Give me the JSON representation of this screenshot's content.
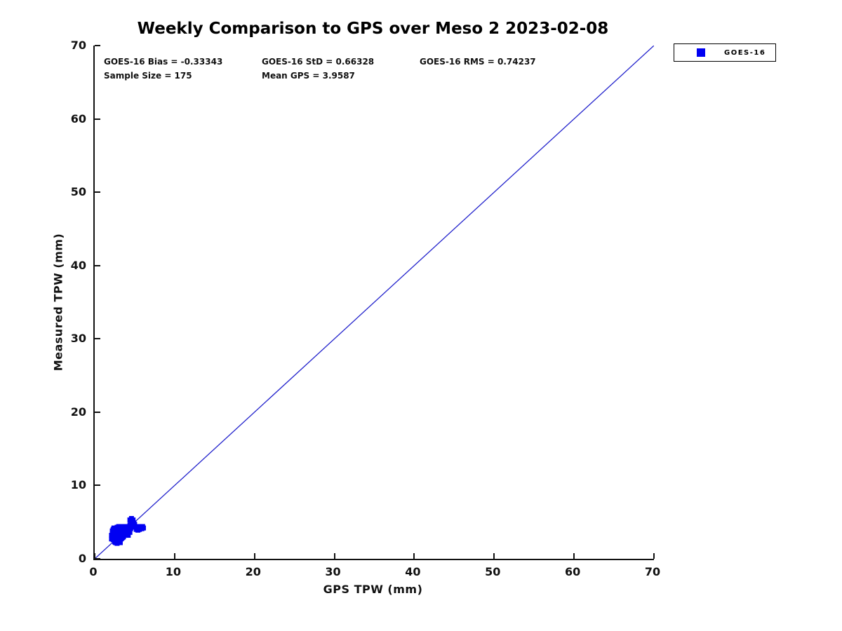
{
  "title": "Weekly Comparison to GPS over Meso 2 2023-02-08",
  "stats": {
    "bias": "GOES-16 Bias = -0.33343",
    "std": "GOES-16 StD = 0.66328",
    "rms": "GOES-16 RMS = 0.74237",
    "sample_size": "Sample Size = 175",
    "mean_gps": "Mean GPS = 3.9587"
  },
  "legend": {
    "items": [
      {
        "label": "GOES-16",
        "marker": "square",
        "marker_color": "#0000f2"
      }
    ],
    "position": "top-right-outside"
  },
  "colors": {
    "marker": "#0000f2",
    "reference_line": "#2222cc",
    "axis": "#111111",
    "text": "#000000",
    "background": "#ffffff"
  },
  "chart_data": {
    "type": "scatter",
    "title": "Weekly Comparison to GPS over Meso 2 2023-02-08",
    "xlabel": "GPS TPW (mm)",
    "ylabel": "Measured TPW (mm)",
    "xlim": [
      0,
      70
    ],
    "ylim": [
      0,
      70
    ],
    "xticks": [
      0,
      10,
      20,
      30,
      40,
      50,
      60,
      70
    ],
    "yticks": [
      0,
      10,
      20,
      30,
      40,
      50,
      60,
      70
    ],
    "grid": false,
    "box": false,
    "reference_line": {
      "from": [
        0,
        0
      ],
      "to": [
        70,
        70
      ],
      "color": "#2222cc",
      "note": "1:1 identity line"
    },
    "annotations": {
      "goes16_bias": -0.33343,
      "goes16_std": 0.66328,
      "goes16_rms": 0.74237,
      "sample_size": 175,
      "mean_gps": 3.9587
    },
    "series": [
      {
        "name": "GOES-16",
        "marker": "square",
        "marker_color": "#0000f2",
        "marker_size_px": 7,
        "points": [
          [
            2.6,
            2.2
          ],
          [
            2.8,
            2.1
          ],
          [
            3.0,
            2.3
          ],
          [
            3.2,
            2.2
          ],
          [
            2.7,
            2.4
          ],
          [
            2.9,
            2.5
          ],
          [
            3.1,
            2.4
          ],
          [
            2.5,
            2.3
          ],
          [
            2.1,
            2.7
          ],
          [
            2.3,
            2.6
          ],
          [
            2.5,
            2.8
          ],
          [
            2.7,
            2.7
          ],
          [
            2.9,
            2.9
          ],
          [
            3.1,
            2.8
          ],
          [
            3.3,
            2.7
          ],
          [
            3.5,
            2.9
          ],
          [
            2.2,
            2.9
          ],
          [
            2.4,
            3.0
          ],
          [
            2.6,
            3.0
          ],
          [
            2.8,
            2.8
          ],
          [
            3.0,
            3.0
          ],
          [
            3.2,
            3.0
          ],
          [
            3.4,
            2.8
          ],
          [
            3.6,
            3.0
          ],
          [
            2.1,
            3.2
          ],
          [
            2.3,
            3.4
          ],
          [
            2.5,
            3.3
          ],
          [
            2.7,
            3.2
          ],
          [
            2.9,
            3.4
          ],
          [
            3.1,
            3.3
          ],
          [
            3.3,
            3.2
          ],
          [
            3.5,
            3.4
          ],
          [
            3.7,
            3.3
          ],
          [
            3.9,
            3.2
          ],
          [
            2.2,
            3.5
          ],
          [
            2.4,
            3.2
          ],
          [
            2.6,
            3.5
          ],
          [
            2.8,
            3.3
          ],
          [
            3.0,
            3.5
          ],
          [
            3.2,
            3.5
          ],
          [
            3.4,
            3.3
          ],
          [
            3.6,
            3.5
          ],
          [
            3.8,
            3.5
          ],
          [
            4.0,
            3.4
          ],
          [
            4.2,
            3.2
          ],
          [
            2.2,
            3.8
          ],
          [
            2.4,
            3.7
          ],
          [
            2.6,
            3.9
          ],
          [
            2.8,
            3.7
          ],
          [
            3.0,
            3.8
          ],
          [
            3.2,
            3.9
          ],
          [
            3.4,
            3.7
          ],
          [
            3.6,
            3.8
          ],
          [
            3.8,
            3.9
          ],
          [
            4.0,
            3.8
          ],
          [
            4.2,
            3.7
          ],
          [
            2.3,
            4.0
          ],
          [
            2.5,
            3.9
          ],
          [
            2.9,
            4.0
          ],
          [
            3.3,
            4.0
          ],
          [
            3.7,
            4.0
          ],
          [
            4.1,
            4.0
          ],
          [
            4.3,
            3.9
          ],
          [
            4.4,
            3.6
          ],
          [
            2.4,
            4.2
          ],
          [
            2.8,
            4.3
          ],
          [
            3.2,
            4.2
          ],
          [
            3.6,
            4.3
          ],
          [
            4.0,
            4.2
          ],
          [
            4.3,
            4.3
          ],
          [
            4.5,
            4.1
          ],
          [
            3.0,
            4.4
          ],
          [
            3.4,
            4.4
          ],
          [
            3.8,
            4.4
          ],
          [
            4.2,
            4.4
          ],
          [
            4.6,
            4.3
          ],
          [
            4.4,
            4.6
          ],
          [
            4.6,
            4.8
          ],
          [
            4.8,
            4.6
          ],
          [
            5.0,
            4.7
          ],
          [
            4.5,
            4.9
          ],
          [
            4.9,
            4.9
          ],
          [
            4.7,
            4.6
          ],
          [
            4.4,
            5.3
          ],
          [
            4.6,
            5.5
          ],
          [
            4.8,
            5.3
          ],
          [
            4.5,
            5.1
          ],
          [
            4.7,
            5.2
          ],
          [
            5.1,
            4.4
          ],
          [
            5.3,
            4.2
          ],
          [
            5.5,
            4.4
          ],
          [
            5.7,
            4.3
          ],
          [
            5.9,
            4.1
          ],
          [
            6.1,
            4.2
          ],
          [
            5.2,
            4.0
          ],
          [
            5.6,
            4.0
          ],
          [
            6.0,
            4.4
          ],
          [
            5.8,
            4.4
          ],
          [
            5.4,
            3.9
          ]
        ]
      }
    ]
  }
}
